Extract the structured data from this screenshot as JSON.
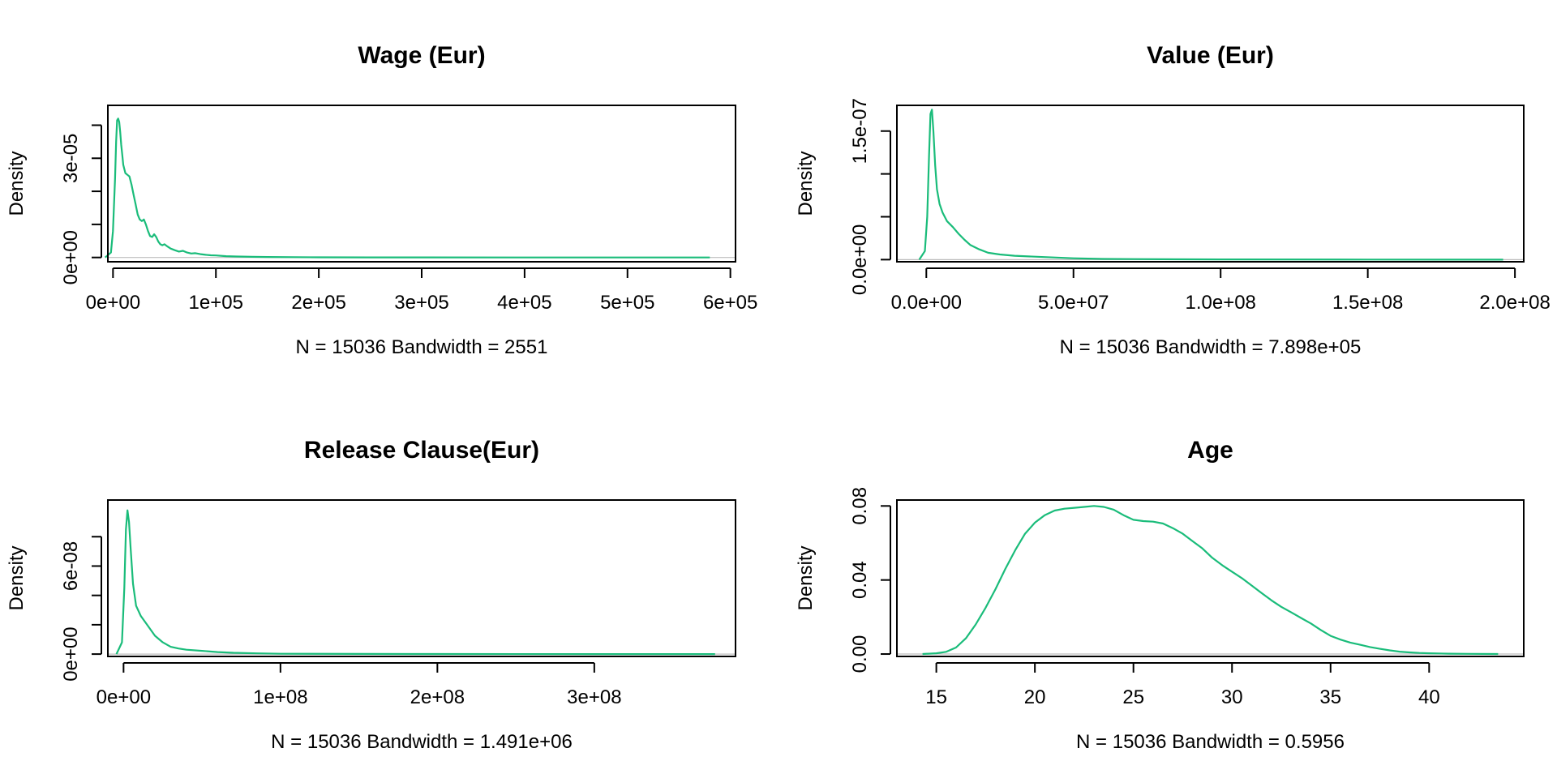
{
  "chart_data": [
    {
      "type": "line",
      "title": "Wage (Eur)",
      "xlabel": "N = 15036   Bandwidth = 2551",
      "ylabel": "Density",
      "xlim": [
        -5000,
        605000
      ],
      "ylim": [
        -1.3e-06,
        4.6e-05
      ],
      "xticks": [
        0,
        100000,
        200000,
        300000,
        400000,
        500000,
        600000
      ],
      "xtick_labels": [
        "0e+00",
        "1e+05",
        "2e+05",
        "3e+05",
        "4e+05",
        "5e+05",
        "6e+05"
      ],
      "yticks": [
        0,
        1e-05,
        2e-05,
        3e-05,
        4e-05
      ],
      "ytick_labels": [
        "0e+00",
        "",
        "",
        "3e-05",
        ""
      ],
      "grid": false,
      "series": [
        {
          "color": "#1abc7a",
          "x": [
            -7600,
            -2000,
            0,
            2000,
            3000,
            4000,
            5000,
            6000,
            7000,
            8000,
            9000,
            10000,
            12000,
            14000,
            16000,
            18000,
            20000,
            22000,
            24000,
            26000,
            28000,
            30000,
            32000,
            34000,
            36000,
            38000,
            40000,
            42000,
            44000,
            46000,
            48000,
            50000,
            53000,
            56000,
            60000,
            64000,
            68000,
            72000,
            76000,
            80000,
            85000,
            90000,
            95000,
            100000,
            110000,
            120000,
            135000,
            150000,
            175000,
            200000,
            250000,
            300000,
            400000,
            500000,
            580000
          ],
          "y": [
            0,
            1.5e-06,
            8e-06,
            2.4e-05,
            3.5e-05,
            4.15e-05,
            4.2e-05,
            4.1e-05,
            3.8e-05,
            3.4e-05,
            3.1e-05,
            2.8e-05,
            2.55e-05,
            2.5e-05,
            2.45e-05,
            2.2e-05,
            1.9e-05,
            1.6e-05,
            1.3e-05,
            1.15e-05,
            1.1e-05,
            1.15e-05,
            1e-05,
            8e-06,
            6.5e-06,
            6.2e-06,
            7e-06,
            6.2e-06,
            4.8e-06,
            4e-06,
            3.7e-06,
            4e-06,
            3.3e-06,
            2.7e-06,
            2.2e-06,
            1.8e-06,
            2e-06,
            1.5e-06,
            1.2e-06,
            1.3e-06,
            1e-06,
            8e-07,
            6.5e-07,
            6e-07,
            4e-07,
            3e-07,
            2e-07,
            1.5e-07,
            1e-07,
            6e-08,
            3e-08,
            2e-08,
            1e-08,
            5e-09,
            0
          ]
        }
      ]
    },
    {
      "type": "line",
      "title": "Value (Eur)",
      "xlabel": "N = 15036   Bandwidth = 7.898e+05",
      "ylabel": "Density",
      "xlim": [
        -10000000.0,
        203000000.0
      ],
      "ylim": [
        -2.5e-09,
        1.8e-07
      ],
      "xticks": [
        0,
        50000000,
        100000000,
        150000000,
        200000000
      ],
      "xtick_labels": [
        "0.0e+00",
        "5.0e+07",
        "1.0e+08",
        "1.5e+08",
        "2.0e+08"
      ],
      "yticks": [
        0,
        5e-08,
        1e-07,
        1.5e-07
      ],
      "ytick_labels": [
        "0.0e+00",
        "",
        "",
        "1.5e-07"
      ],
      "grid": false,
      "series": [
        {
          "color": "#1abc7a",
          "x": [
            -2400000,
            -500000,
            300000,
            900000,
            1400000,
            1900000,
            2400000,
            3000000,
            3600000,
            4500000,
            5500000,
            7000000,
            9000000,
            11000000,
            13000000,
            15000000,
            18000000,
            21000000,
            25000000,
            30000000,
            40000000,
            50000000,
            60000000,
            80000000,
            100000000,
            150000000,
            196000000
          ],
          "y": [
            0,
            1e-08,
            5e-08,
            1.2e-07,
            1.7e-07,
            1.75e-07,
            1.5e-07,
            1.1e-07,
            8.2e-08,
            6.5e-08,
            5.5e-08,
            4.5e-08,
            3.8e-08,
            3e-08,
            2.3e-08,
            1.7e-08,
            1.2e-08,
            8e-09,
            6e-09,
            4.5e-09,
            3e-09,
            1.6e-09,
            8e-10,
            4e-10,
            2e-10,
            5e-11,
            0
          ]
        }
      ]
    },
    {
      "type": "line",
      "title": "Release Clause(Eur)",
      "xlabel": "N = 15036   Bandwidth = 1.491e+06",
      "ylabel": "Density",
      "xlim": [
        -10000000.0,
        390000000.0
      ],
      "ylim": [
        -1.6e-09,
        1.05e-07
      ],
      "xticks": [
        0,
        100000000,
        200000000,
        300000000
      ],
      "xtick_labels": [
        "0e+00",
        "1e+08",
        "2e+08",
        "3e+08"
      ],
      "yticks": [
        0,
        2e-08,
        4e-08,
        6e-08,
        8e-08
      ],
      "ytick_labels": [
        "0e+00",
        "",
        "",
        "6e-08",
        ""
      ],
      "grid": false,
      "series": [
        {
          "color": "#1abc7a",
          "x": [
            -4500000,
            -1000000,
            500000,
            1500000,
            2500000,
            3500000,
            4500000,
            6000000,
            8000000,
            11000000,
            15000000,
            20000000,
            25000000,
            30000000,
            35000000,
            40000000,
            50000000,
            60000000,
            70000000,
            85000000,
            100000000,
            150000000,
            200000000,
            300000000,
            377000000
          ],
          "y": [
            0,
            8e-09,
            4.5e-08,
            8.5e-08,
            9.8e-08,
            9e-08,
            7.2e-08,
            4.8e-08,
            3.3e-08,
            2.6e-08,
            2e-08,
            1.25e-08,
            8e-09,
            5e-09,
            3.8e-09,
            3e-09,
            2.2e-09,
            1.4e-09,
            9e-10,
            5e-10,
            2e-10,
            1e-10,
            5e-11,
            2e-11,
            0
          ]
        }
      ]
    },
    {
      "type": "line",
      "title": "Age",
      "xlabel": "N = 15036   Bandwidth = 0.5956",
      "ylabel": "Density",
      "xlim": [
        13.0,
        44.8
      ],
      "ylim": [
        -0.0013,
        0.0832
      ],
      "xticks": [
        15,
        20,
        25,
        30,
        35,
        40
      ],
      "xtick_labels": [
        "15",
        "20",
        "25",
        "30",
        "35",
        "40"
      ],
      "yticks": [
        0,
        0.04,
        0.08
      ],
      "ytick_labels": [
        "0.00",
        "0.04",
        "0.08"
      ],
      "grid": false,
      "series": [
        {
          "color": "#1abc7a",
          "x": [
            14.3,
            15,
            15.5,
            16,
            16.5,
            17,
            17.5,
            18,
            18.5,
            19,
            19.5,
            20,
            20.5,
            21,
            21.5,
            22,
            22.5,
            23,
            23.5,
            24,
            24.5,
            25,
            25.5,
            26,
            26.5,
            27,
            27.5,
            28,
            28.5,
            29,
            29.5,
            30,
            30.5,
            31,
            31.5,
            32,
            32.5,
            33,
            33.5,
            34,
            34.5,
            35,
            35.5,
            36,
            36.5,
            37,
            37.5,
            38,
            38.5,
            39,
            39.5,
            40,
            41,
            42,
            43.5
          ],
          "y": [
            0,
            0.0004,
            0.0012,
            0.0035,
            0.0085,
            0.016,
            0.025,
            0.035,
            0.046,
            0.056,
            0.065,
            0.071,
            0.075,
            0.0775,
            0.0785,
            0.079,
            0.0795,
            0.08,
            0.0795,
            0.078,
            0.075,
            0.0725,
            0.0718,
            0.0715,
            0.0705,
            0.068,
            0.065,
            0.061,
            0.057,
            0.052,
            0.048,
            0.0445,
            0.041,
            0.037,
            0.033,
            0.029,
            0.0255,
            0.0225,
            0.0195,
            0.0165,
            0.013,
            0.0098,
            0.0078,
            0.0062,
            0.005,
            0.0038,
            0.0028,
            0.002,
            0.0013,
            0.0009,
            0.0006,
            0.0004,
            0.0002,
            0.0001,
            0
          ]
        }
      ]
    }
  ]
}
